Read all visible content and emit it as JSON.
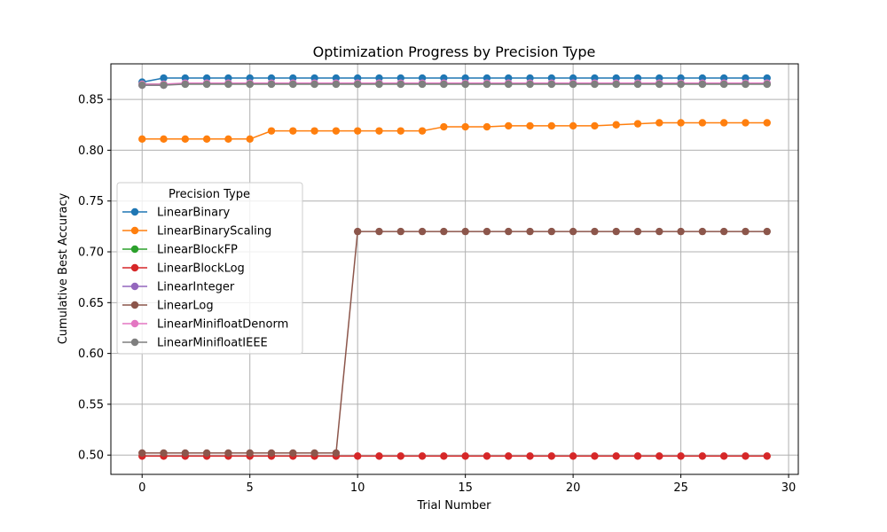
{
  "chart_data": {
    "type": "line",
    "title": "Optimization Progress by Precision Type",
    "xlabel": "Trial Number",
    "ylabel": "Cumulative Best Accuracy",
    "xlim": [
      -1.45,
      30.45
    ],
    "ylim": [
      0.481,
      0.885
    ],
    "xticks": [
      0,
      5,
      10,
      15,
      20,
      25,
      30
    ],
    "yticks": [
      0.5,
      0.55,
      0.6,
      0.65,
      0.7,
      0.75,
      0.8,
      0.85
    ],
    "grid": true,
    "legend": {
      "title": "Precision Type",
      "position": "center-left"
    },
    "x": [
      0,
      1,
      2,
      3,
      4,
      5,
      6,
      7,
      8,
      9,
      10,
      11,
      12,
      13,
      14,
      15,
      16,
      17,
      18,
      19,
      20,
      21,
      22,
      23,
      24,
      25,
      26,
      27,
      28,
      29
    ],
    "series": [
      {
        "name": "LinearBinary",
        "color": "#1f77b4",
        "values": [
          0.867,
          0.871,
          0.871,
          0.871,
          0.871,
          0.871,
          0.871,
          0.871,
          0.871,
          0.871,
          0.871,
          0.871,
          0.871,
          0.871,
          0.871,
          0.871,
          0.871,
          0.871,
          0.871,
          0.871,
          0.871,
          0.871,
          0.871,
          0.871,
          0.871,
          0.871,
          0.871,
          0.871,
          0.871,
          0.871
        ]
      },
      {
        "name": "LinearBinaryScaling",
        "color": "#ff7f0e",
        "values": [
          0.811,
          0.811,
          0.811,
          0.811,
          0.811,
          0.811,
          0.819,
          0.819,
          0.819,
          0.819,
          0.819,
          0.819,
          0.819,
          0.819,
          0.823,
          0.823,
          0.823,
          0.824,
          0.824,
          0.824,
          0.824,
          0.824,
          0.825,
          0.826,
          0.827,
          0.827,
          0.827,
          0.827,
          0.827,
          0.827
        ]
      },
      {
        "name": "LinearBlockFP",
        "color": "#2ca02c",
        "values": [
          0.865,
          0.865,
          0.865,
          0.865,
          0.865,
          0.865,
          0.865,
          0.865,
          0.865,
          0.865,
          0.865,
          0.865,
          0.865,
          0.865,
          0.865,
          0.865,
          0.865,
          0.865,
          0.865,
          0.865,
          0.865,
          0.865,
          0.865,
          0.865,
          0.865,
          0.865,
          0.865,
          0.865,
          0.865,
          0.865
        ]
      },
      {
        "name": "LinearBlockLog",
        "color": "#d62728",
        "values": [
          0.499,
          0.499,
          0.499,
          0.499,
          0.499,
          0.499,
          0.499,
          0.499,
          0.499,
          0.499,
          0.499,
          0.499,
          0.499,
          0.499,
          0.499,
          0.499,
          0.499,
          0.499,
          0.499,
          0.499,
          0.499,
          0.499,
          0.499,
          0.499,
          0.499,
          0.499,
          0.499,
          0.499,
          0.499,
          0.499
        ]
      },
      {
        "name": "LinearInteger",
        "color": "#9467bd",
        "values": [
          0.864,
          0.864,
          0.866,
          0.866,
          0.866,
          0.866,
          0.866,
          0.866,
          0.866,
          0.866,
          0.866,
          0.866,
          0.866,
          0.866,
          0.866,
          0.866,
          0.866,
          0.866,
          0.866,
          0.866,
          0.866,
          0.866,
          0.866,
          0.866,
          0.866,
          0.866,
          0.866,
          0.866,
          0.866,
          0.866
        ]
      },
      {
        "name": "LinearLog",
        "color": "#8c564b",
        "values": [
          0.502,
          0.502,
          0.502,
          0.502,
          0.502,
          0.502,
          0.502,
          0.502,
          0.502,
          0.502,
          0.72,
          0.72,
          0.72,
          0.72,
          0.72,
          0.72,
          0.72,
          0.72,
          0.72,
          0.72,
          0.72,
          0.72,
          0.72,
          0.72,
          0.72,
          0.72,
          0.72,
          0.72,
          0.72,
          0.72
        ]
      },
      {
        "name": "LinearMinifloatDenorm",
        "color": "#e377c2",
        "values": [
          0.865,
          0.865,
          0.866,
          0.866,
          0.866,
          0.866,
          0.866,
          0.866,
          0.866,
          0.866,
          0.866,
          0.866,
          0.866,
          0.866,
          0.866,
          0.866,
          0.866,
          0.866,
          0.866,
          0.866,
          0.866,
          0.866,
          0.866,
          0.866,
          0.866,
          0.866,
          0.866,
          0.866,
          0.866,
          0.866
        ]
      },
      {
        "name": "LinearMinifloatIEEE",
        "color": "#7f7f7f",
        "values": [
          0.864,
          0.864,
          0.865,
          0.865,
          0.865,
          0.865,
          0.865,
          0.865,
          0.865,
          0.865,
          0.865,
          0.865,
          0.865,
          0.865,
          0.865,
          0.865,
          0.865,
          0.865,
          0.865,
          0.865,
          0.865,
          0.865,
          0.865,
          0.865,
          0.865,
          0.865,
          0.865,
          0.865,
          0.865,
          0.865
        ]
      }
    ]
  }
}
